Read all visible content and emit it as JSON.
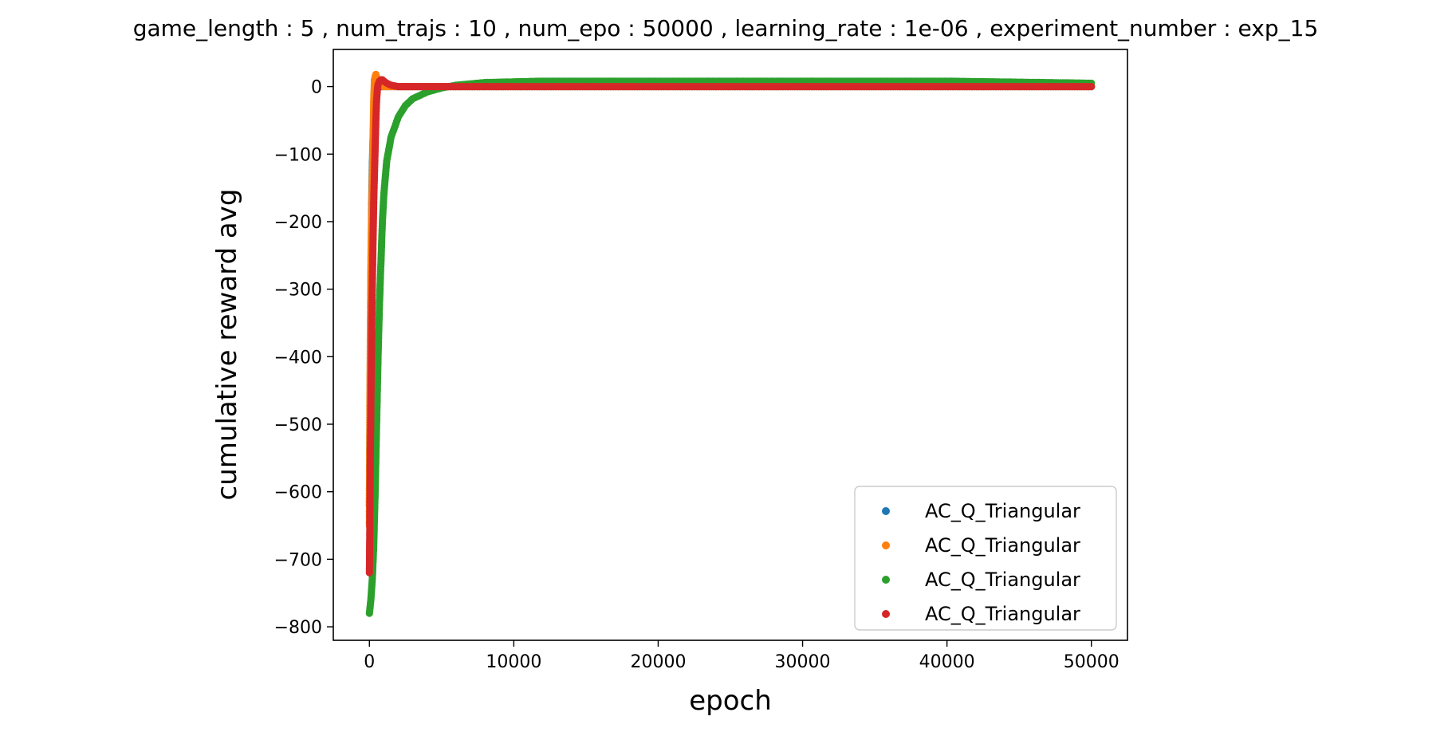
{
  "chart_data": {
    "type": "scatter",
    "title": "game_length : 5 , num_trajs : 10 , num_epo : 50000 , learning_rate : 1e-06 , experiment_number : exp_15",
    "xlabel": "epoch",
    "ylabel": "cumulative reward avg",
    "xlim": [
      -2500,
      52500
    ],
    "ylim": [
      -820,
      55
    ],
    "x_ticks": [
      0,
      10000,
      20000,
      30000,
      40000,
      50000
    ],
    "x_tick_labels": [
      "0",
      "10000",
      "20000",
      "30000",
      "40000",
      "50000"
    ],
    "y_ticks": [
      0,
      -100,
      -200,
      -300,
      -400,
      -500,
      -600,
      -700,
      -800
    ],
    "y_tick_labels": [
      "0",
      "−100",
      "−200",
      "−300",
      "−400",
      "−500",
      "−600",
      "−700",
      "−800"
    ],
    "grid": false,
    "legend_position": "lower-right",
    "series": [
      {
        "name": "AC_Q_Triangular",
        "color": "#1f77b4",
        "points": [
          [
            0,
            -620
          ],
          [
            20,
            -560
          ],
          [
            40,
            -480
          ],
          [
            60,
            -420
          ],
          [
            80,
            -350
          ],
          [
            100,
            -300
          ],
          [
            130,
            -230
          ],
          [
            160,
            -170
          ],
          [
            200,
            -120
          ],
          [
            250,
            -80
          ],
          [
            300,
            -50
          ],
          [
            400,
            -20
          ],
          [
            500,
            -5
          ],
          [
            700,
            0
          ],
          [
            1000,
            0
          ],
          [
            50000,
            0
          ]
        ]
      },
      {
        "name": "AC_Q_Triangular",
        "color": "#ff7f0e",
        "points": [
          [
            0,
            -650
          ],
          [
            20,
            -540
          ],
          [
            50,
            -420
          ],
          [
            80,
            -330
          ],
          [
            110,
            -260
          ],
          [
            150,
            -200
          ],
          [
            200,
            -140
          ],
          [
            250,
            -80
          ],
          [
            300,
            -20
          ],
          [
            350,
            10
          ],
          [
            400,
            15
          ],
          [
            450,
            18
          ],
          [
            500,
            14
          ],
          [
            600,
            6
          ],
          [
            700,
            2
          ],
          [
            1000,
            0
          ],
          [
            50000,
            0
          ]
        ]
      },
      {
        "name": "AC_Q_Triangular",
        "color": "#2ca02c",
        "points": [
          [
            0,
            -780
          ],
          [
            100,
            -760
          ],
          [
            200,
            -730
          ],
          [
            300,
            -680
          ],
          [
            400,
            -600
          ],
          [
            500,
            -500
          ],
          [
            600,
            -400
          ],
          [
            700,
            -320
          ],
          [
            800,
            -260
          ],
          [
            900,
            -200
          ],
          [
            1000,
            -160
          ],
          [
            1200,
            -110
          ],
          [
            1500,
            -75
          ],
          [
            2000,
            -45
          ],
          [
            2500,
            -28
          ],
          [
            3000,
            -18
          ],
          [
            4000,
            -8
          ],
          [
            5000,
            -2
          ],
          [
            6000,
            2
          ],
          [
            8000,
            6
          ],
          [
            12000,
            8
          ],
          [
            20000,
            8
          ],
          [
            30000,
            8
          ],
          [
            40000,
            8
          ],
          [
            50000,
            5
          ]
        ]
      },
      {
        "name": "AC_Q_Triangular",
        "color": "#d62728",
        "points": [
          [
            0,
            -720
          ],
          [
            30,
            -650
          ],
          [
            60,
            -560
          ],
          [
            100,
            -480
          ],
          [
            140,
            -400
          ],
          [
            180,
            -330
          ],
          [
            220,
            -270
          ],
          [
            260,
            -220
          ],
          [
            300,
            -170
          ],
          [
            350,
            -130
          ],
          [
            400,
            -90
          ],
          [
            450,
            -50
          ],
          [
            500,
            -20
          ],
          [
            550,
            -5
          ],
          [
            600,
            3
          ],
          [
            700,
            8
          ],
          [
            800,
            10
          ],
          [
            900,
            10
          ],
          [
            1000,
            8
          ],
          [
            1200,
            5
          ],
          [
            1500,
            2
          ],
          [
            2000,
            0
          ],
          [
            3000,
            0
          ],
          [
            50000,
            0
          ]
        ]
      }
    ],
    "legend_entries": [
      "AC_Q_Triangular",
      "AC_Q_Triangular",
      "AC_Q_Triangular",
      "AC_Q_Triangular"
    ]
  }
}
